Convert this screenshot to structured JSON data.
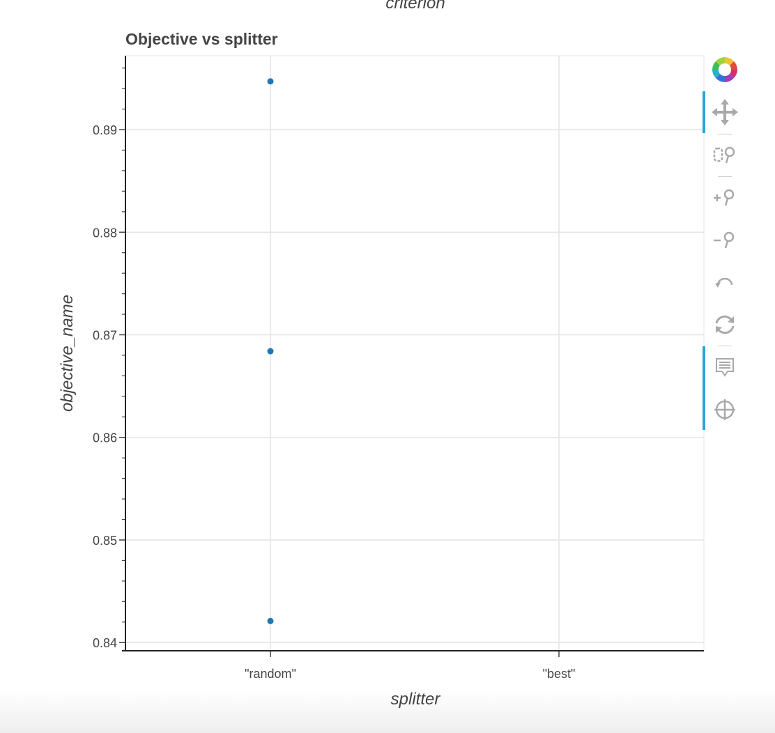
{
  "figure": {
    "top_label": "criterion",
    "accent_color": "#2ba4d8",
    "point_color": "#1f77b4"
  },
  "chart_data": {
    "type": "scatter",
    "title": "Objective vs splitter",
    "xlabel": "splitter",
    "ylabel": "objective_name",
    "categories": [
      "\"random\"",
      "\"best\""
    ],
    "ylim": [
      0.8392,
      0.8972
    ],
    "yticks": [
      "0.84",
      "0.85",
      "0.86",
      "0.87",
      "0.88",
      "0.89"
    ],
    "grid": true,
    "points": [
      {
        "x": "\"random\"",
        "y": 0.8947
      },
      {
        "x": "\"random\"",
        "y": 0.8684
      },
      {
        "x": "\"random\"",
        "y": 0.8421
      }
    ]
  },
  "toolbar": {
    "tools": [
      {
        "icon": "bokeh-logo-icon"
      },
      {
        "icon": "pan-icon"
      },
      {
        "icon": "box-zoom-icon"
      },
      {
        "icon": "zoom-in-icon"
      },
      {
        "icon": "zoom-out-icon"
      },
      {
        "icon": "undo-icon"
      },
      {
        "icon": "reset-icon"
      },
      {
        "icon": "hover-icon"
      },
      {
        "icon": "crosshair-icon"
      }
    ]
  }
}
